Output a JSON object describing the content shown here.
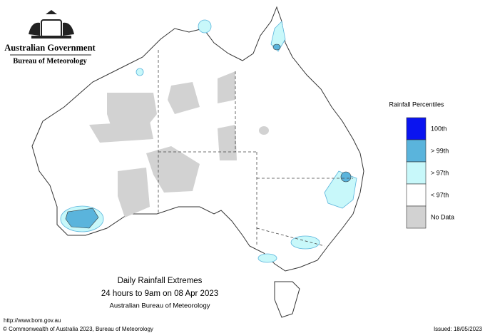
{
  "header": {
    "government": "Australian Government",
    "agency": "Bureau of Meteorology"
  },
  "legend": {
    "title": "Rainfall Percentiles",
    "items": [
      {
        "label": "100th",
        "color": "#0a14f0"
      },
      {
        "label": "> 99th",
        "color": "#5ab4dc"
      },
      {
        "label": "> 97th",
        "color": "#c8f8fa"
      },
      {
        "label": "< 97th",
        "color": "#ffffff"
      },
      {
        "label": "No Data",
        "color": "#d2d2d2"
      }
    ]
  },
  "caption": {
    "title": "Daily Rainfall Extremes",
    "period": "24 hours to 9am on 08 Apr 2023",
    "source": "Australian Bureau of Meteorology"
  },
  "footer": {
    "url": "http://www.bom.gov.au",
    "copyright": "© Commonwealth of Australia 2023, Bureau of Meteorology",
    "issued": "Issued: 18/05/2023"
  }
}
